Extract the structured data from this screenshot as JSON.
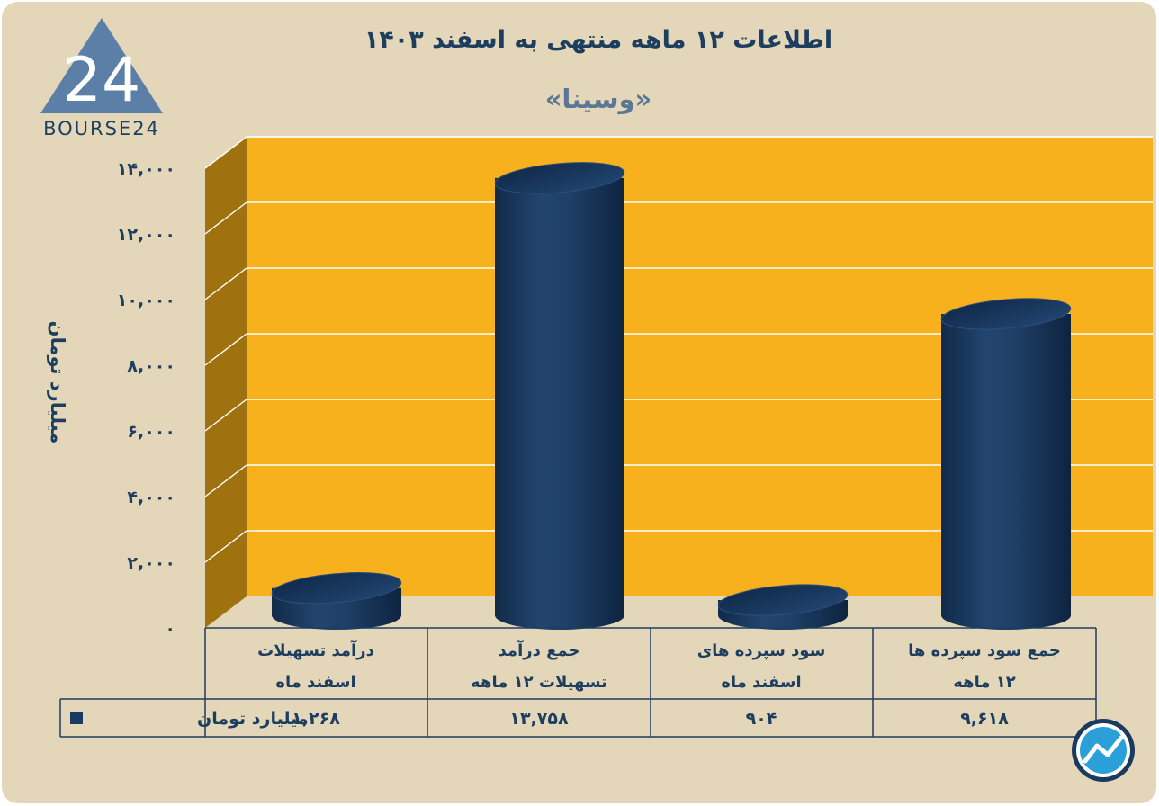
{
  "title": "اطلاعات ۱۲ ماهه منتهی به اسفند ۱۴۰۳",
  "subtitle": "«وسینا»",
  "logo": {
    "text": "BOURSE24",
    "mark": "24"
  },
  "colors": {
    "background": "#e4d7b9",
    "plot": "#f7b11c",
    "wall": "#a0720f",
    "bar": "#1b3a60",
    "text": "#1d3e5f"
  },
  "chart_data": {
    "type": "bar",
    "ylabel": "میلیارد تومان",
    "ylim": [
      0,
      14000
    ],
    "yticks": [
      0,
      2000,
      4000,
      6000,
      8000,
      10000,
      12000,
      14000
    ],
    "ytick_labels": [
      "۰",
      "۲,۰۰۰",
      "۴,۰۰۰",
      "۶,۰۰۰",
      "۸,۰۰۰",
      "۱۰,۰۰۰",
      "۱۲,۰۰۰",
      "۱۴,۰۰۰"
    ],
    "grid": true,
    "categories": [
      [
        "درآمد تسهیلات",
        "اسفند ماه"
      ],
      [
        "جمع درآمد",
        "تسهیلات ۱۲ ماهه"
      ],
      [
        "سود سپرده های",
        "اسفند ماه"
      ],
      [
        "جمع سود سپرده ها",
        "۱۲ ماهه"
      ]
    ],
    "series": [
      {
        "name": "میلیارد تومان",
        "values": [
          1268,
          13758,
          904,
          9618
        ],
        "labels": [
          "۱,۲۶۸",
          "۱۳,۷۵۸",
          "۹۰۴",
          "۹,۶۱۸"
        ]
      }
    ]
  }
}
